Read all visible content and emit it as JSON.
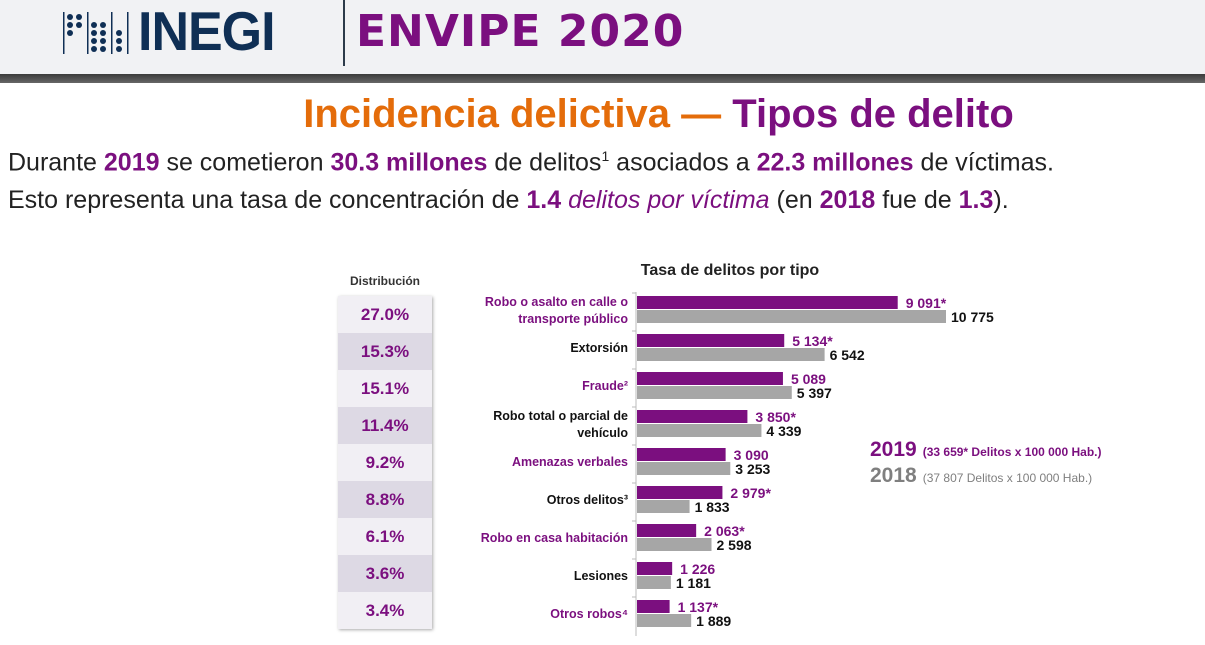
{
  "header": {
    "logo_text": "INEGI",
    "survey_title": "ENVIPE 2020"
  },
  "title": {
    "part1": "Incidencia delictiva",
    "dash": " — ",
    "part2": "Tipos de delito"
  },
  "summary": {
    "line1": [
      "Durante ",
      "2019",
      " se cometieron ",
      "30.3 millones",
      " de delitos",
      "1",
      " asociados a ",
      "22.3 millones",
      " de víctimas."
    ],
    "line2": [
      "Esto representa una tasa de concentración de ",
      "1.4",
      " delitos por víctima",
      " (en ",
      "2018",
      " fue de ",
      "1.3",
      "). "
    ]
  },
  "distribution": {
    "label": "Distribución",
    "values": [
      "27.0%",
      "15.3%",
      "15.1%",
      "11.4%",
      "9.2%",
      "8.8%",
      "6.1%",
      "3.6%",
      "3.4%"
    ]
  },
  "legend": {
    "y2019": "2019",
    "y2019_desc": "(33 659* Delitos x 100 000 Hab.)",
    "y2018": "2018",
    "y2018_desc": "(37 807  Delitos x 100 000 Hab.)"
  },
  "colors": {
    "purple": "#7b0f7f",
    "gray": "#a6a6a6",
    "orange": "#e46c0a",
    "navy": "#0f2f55"
  },
  "chart_data": {
    "type": "bar",
    "orientation": "horizontal",
    "title": "Tasa de delitos por tipo",
    "categories": [
      "Robo o asalto en calle o transporte público",
      "Extorsión",
      "Fraude²",
      "Robo total o parcial de vehículo",
      "Amenazas verbales",
      "Otros delitos³",
      "Robo en casa habitación",
      "Lesiones",
      "Otros robos⁴"
    ],
    "category_colors": [
      "purple",
      "black",
      "purple",
      "black",
      "purple",
      "black",
      "purple",
      "black",
      "purple"
    ],
    "series": [
      {
        "name": "2019",
        "color": "#7b0f7f",
        "values": [
          9091,
          5134,
          5089,
          3850,
          3090,
          2979,
          2063,
          1226,
          1137
        ],
        "labels": [
          "9 091*",
          "5 134*",
          "5 089",
          "3 850*",
          "3 090",
          "2 979*",
          "2 063*",
          "1 226",
          "1 137*"
        ]
      },
      {
        "name": "2018",
        "color": "#a6a6a6",
        "values": [
          10775,
          6542,
          5397,
          4339,
          3253,
          1833,
          2598,
          1181,
          1889
        ],
        "labels": [
          "10 775",
          "6 542",
          "5 397",
          "4 339",
          "3 253",
          "1 833",
          "2 598",
          "1 181",
          "1 889"
        ]
      }
    ],
    "xlim": [
      0,
      10775
    ],
    "grid": false,
    "legend": "right"
  }
}
